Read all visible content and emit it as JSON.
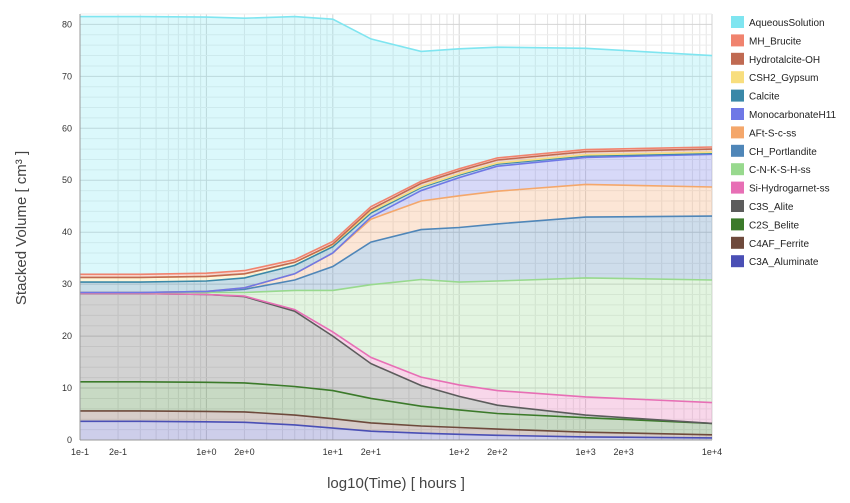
{
  "chart_data": {
    "type": "area",
    "stacked": true,
    "xlabel": "log10(Time) [ hours ]",
    "ylabel": "Stacked Volume [ cm³ ]",
    "xscale": "log",
    "xlim": [
      0.1,
      10000
    ],
    "ylim": [
      0,
      82
    ],
    "grid": true,
    "legend_position": "right",
    "x_ticks": [
      {
        "value": 0.1,
        "label": "1e-1"
      },
      {
        "value": 0.2,
        "label": "2e-1"
      },
      {
        "value": 1,
        "label": "1e+0"
      },
      {
        "value": 2,
        "label": "2e+0"
      },
      {
        "value": 10,
        "label": "1e+1"
      },
      {
        "value": 20,
        "label": "2e+1"
      },
      {
        "value": 100,
        "label": "1e+2"
      },
      {
        "value": 200,
        "label": "2e+2"
      },
      {
        "value": 1000,
        "label": "1e+3"
      },
      {
        "value": 2000,
        "label": "2e+3"
      },
      {
        "value": 10000,
        "label": "1e+4"
      }
    ],
    "y_ticks": [
      0,
      10,
      20,
      30,
      40,
      50,
      60,
      70,
      80
    ],
    "x": [
      0.1,
      0.3,
      1,
      2,
      5,
      10,
      20,
      50,
      100,
      200,
      1000,
      10000
    ],
    "series": [
      {
        "name": "C3A_Aluminate",
        "color": "#4a4fb5",
        "values": [
          3.6,
          3.6,
          3.5,
          3.4,
          2.9,
          2.3,
          1.7,
          1.3,
          1.1,
          0.9,
          0.6,
          0.4
        ]
      },
      {
        "name": "C4AF_Ferrite",
        "color": "#6e4a3c",
        "values": [
          2.0,
          2.0,
          2.0,
          2.0,
          1.9,
          1.8,
          1.6,
          1.4,
          1.3,
          1.2,
          0.9,
          0.6
        ]
      },
      {
        "name": "C2S_Belite",
        "color": "#3b7a2a",
        "values": [
          5.6,
          5.6,
          5.6,
          5.6,
          5.5,
          5.4,
          4.7,
          3.8,
          3.4,
          3.0,
          2.8,
          2.2
        ]
      },
      {
        "name": "C3S_Alite",
        "color": "#5c5c5c",
        "values": [
          17.0,
          17.0,
          16.9,
          16.6,
          14.5,
          10.5,
          6.7,
          4.0,
          2.6,
          1.6,
          0.5,
          0.0
        ]
      },
      {
        "name": "Si-Hydrogarnet-ss",
        "color": "#e76fb5",
        "values": [
          0.0,
          0.0,
          0.0,
          0.1,
          0.3,
          0.8,
          1.2,
          1.6,
          2.2,
          2.8,
          3.5,
          4.0
        ]
      },
      {
        "name": "C-N-K-S-H-ss",
        "color": "#98d98e",
        "values": [
          0.2,
          0.2,
          0.4,
          0.7,
          3.7,
          8.0,
          14.0,
          18.8,
          19.8,
          21.1,
          22.9,
          23.6
        ]
      },
      {
        "name": "CH_Portlandite",
        "color": "#4f86b8",
        "values": [
          0.0,
          0.0,
          0.2,
          0.6,
          2.0,
          4.6,
          8.2,
          9.6,
          10.5,
          11.0,
          11.7,
          12.3
        ]
      },
      {
        "name": "AFt-S-c-ss",
        "color": "#f4a76b",
        "values": [
          0.0,
          0.0,
          0.0,
          0.3,
          1.2,
          2.6,
          4.4,
          5.5,
          6.1,
          6.3,
          6.3,
          5.6
        ]
      },
      {
        "name": "MonocarbonateH11",
        "color": "#6f78e6",
        "values": [
          0.0,
          0.0,
          0.0,
          0.0,
          0.0,
          0.0,
          0.4,
          2.0,
          3.5,
          4.8,
          5.2,
          6.3
        ]
      },
      {
        "name": "Calcite",
        "color": "#3a88a8",
        "values": [
          2.0,
          2.0,
          2.0,
          1.9,
          1.6,
          1.2,
          0.8,
          0.6,
          0.5,
          0.4,
          0.3,
          0.2
        ]
      },
      {
        "name": "CSH2_Gypsum",
        "color": "#f8de7e",
        "values": [
          0.9,
          0.9,
          0.9,
          0.8,
          0.6,
          0.4,
          0.3,
          0.2,
          0.2,
          0.2,
          0.2,
          0.2
        ]
      },
      {
        "name": "Hydrotalcite-OH",
        "color": "#c06a52",
        "values": [
          0.0,
          0.0,
          0.0,
          0.0,
          0.0,
          0.1,
          0.4,
          0.6,
          0.6,
          0.6,
          0.6,
          0.6
        ]
      },
      {
        "name": "MH_Brucite",
        "color": "#f0836e",
        "values": [
          0.6,
          0.6,
          0.6,
          0.6,
          0.5,
          0.5,
          0.5,
          0.4,
          0.4,
          0.4,
          0.4,
          0.4
        ]
      },
      {
        "name": "AqueousSolution",
        "color": "#7fe5f0",
        "values": [
          49.6,
          49.6,
          49.3,
          48.6,
          46.8,
          42.8,
          32.3,
          25.0,
          23.1,
          21.3,
          19.5,
          17.6
        ]
      }
    ],
    "legend_order": [
      "AqueousSolution",
      "MH_Brucite",
      "Hydrotalcite-OH",
      "CSH2_Gypsum",
      "Calcite",
      "MonocarbonateH11",
      "AFt-S-c-ss",
      "CH_Portlandite",
      "C-N-K-S-H-ss",
      "Si-Hydrogarnet-ss",
      "C3S_Alite",
      "C2S_Belite",
      "C4AF_Ferrite",
      "C3A_Aluminate"
    ]
  }
}
